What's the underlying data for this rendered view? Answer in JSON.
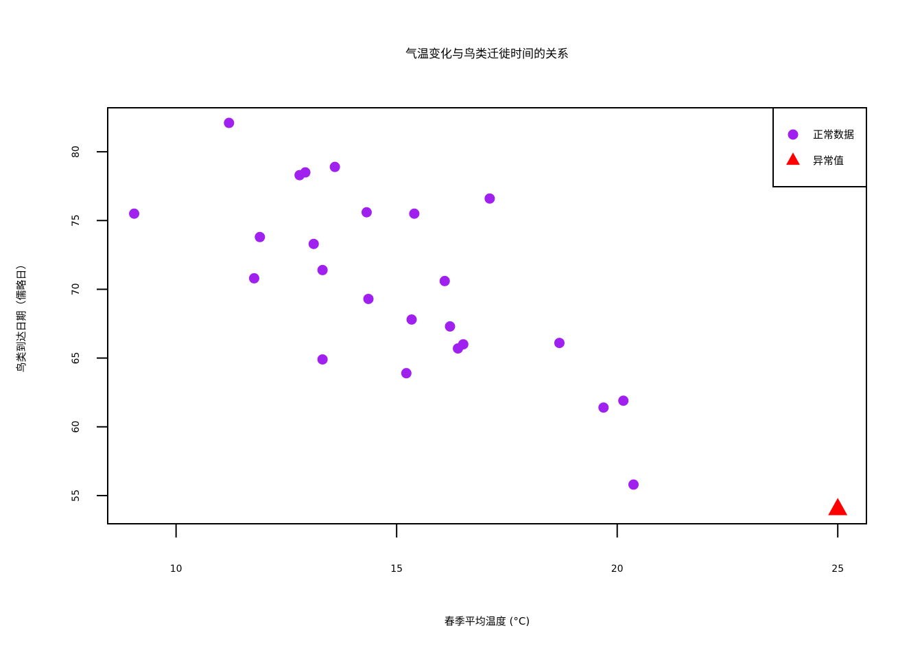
{
  "chart_data": {
    "type": "scatter",
    "title": "气温变化与鸟类迁徙时间的关系",
    "xlabel": "春季平均温度 (°C)",
    "ylabel": "鸟类到达日期（儒略日）",
    "xlim": [
      8.45,
      25.65
    ],
    "ylim": [
      52.95,
      83.2
    ],
    "xticks": [
      10,
      15,
      20,
      25
    ],
    "yticks": [
      55,
      60,
      65,
      70,
      75,
      80
    ],
    "grid": false,
    "legend_position": "top-right",
    "series": [
      {
        "name": "正常数据",
        "marker": "circle",
        "color": "#a020f0",
        "points": [
          {
            "x": 9.05,
            "y": 75.5
          },
          {
            "x": 11.2,
            "y": 82.1
          },
          {
            "x": 11.77,
            "y": 70.8
          },
          {
            "x": 11.9,
            "y": 73.8
          },
          {
            "x": 12.8,
            "y": 78.3
          },
          {
            "x": 12.93,
            "y": 78.5
          },
          {
            "x": 13.12,
            "y": 73.3
          },
          {
            "x": 13.32,
            "y": 71.4
          },
          {
            "x": 13.32,
            "y": 64.9
          },
          {
            "x": 13.6,
            "y": 78.9
          },
          {
            "x": 14.32,
            "y": 75.6
          },
          {
            "x": 14.36,
            "y": 69.3
          },
          {
            "x": 15.22,
            "y": 63.9
          },
          {
            "x": 15.34,
            "y": 67.8
          },
          {
            "x": 15.4,
            "y": 75.5
          },
          {
            "x": 16.09,
            "y": 70.6
          },
          {
            "x": 16.21,
            "y": 67.3
          },
          {
            "x": 16.39,
            "y": 65.7
          },
          {
            "x": 16.51,
            "y": 66.0
          },
          {
            "x": 17.11,
            "y": 76.6
          },
          {
            "x": 18.69,
            "y": 66.1
          },
          {
            "x": 19.69,
            "y": 61.4
          },
          {
            "x": 20.14,
            "y": 61.9
          },
          {
            "x": 20.37,
            "y": 55.8
          }
        ]
      },
      {
        "name": "异常值",
        "marker": "triangle",
        "color": "#ff0000",
        "points": [
          {
            "x": 25.0,
            "y": 54.0
          }
        ]
      }
    ]
  }
}
